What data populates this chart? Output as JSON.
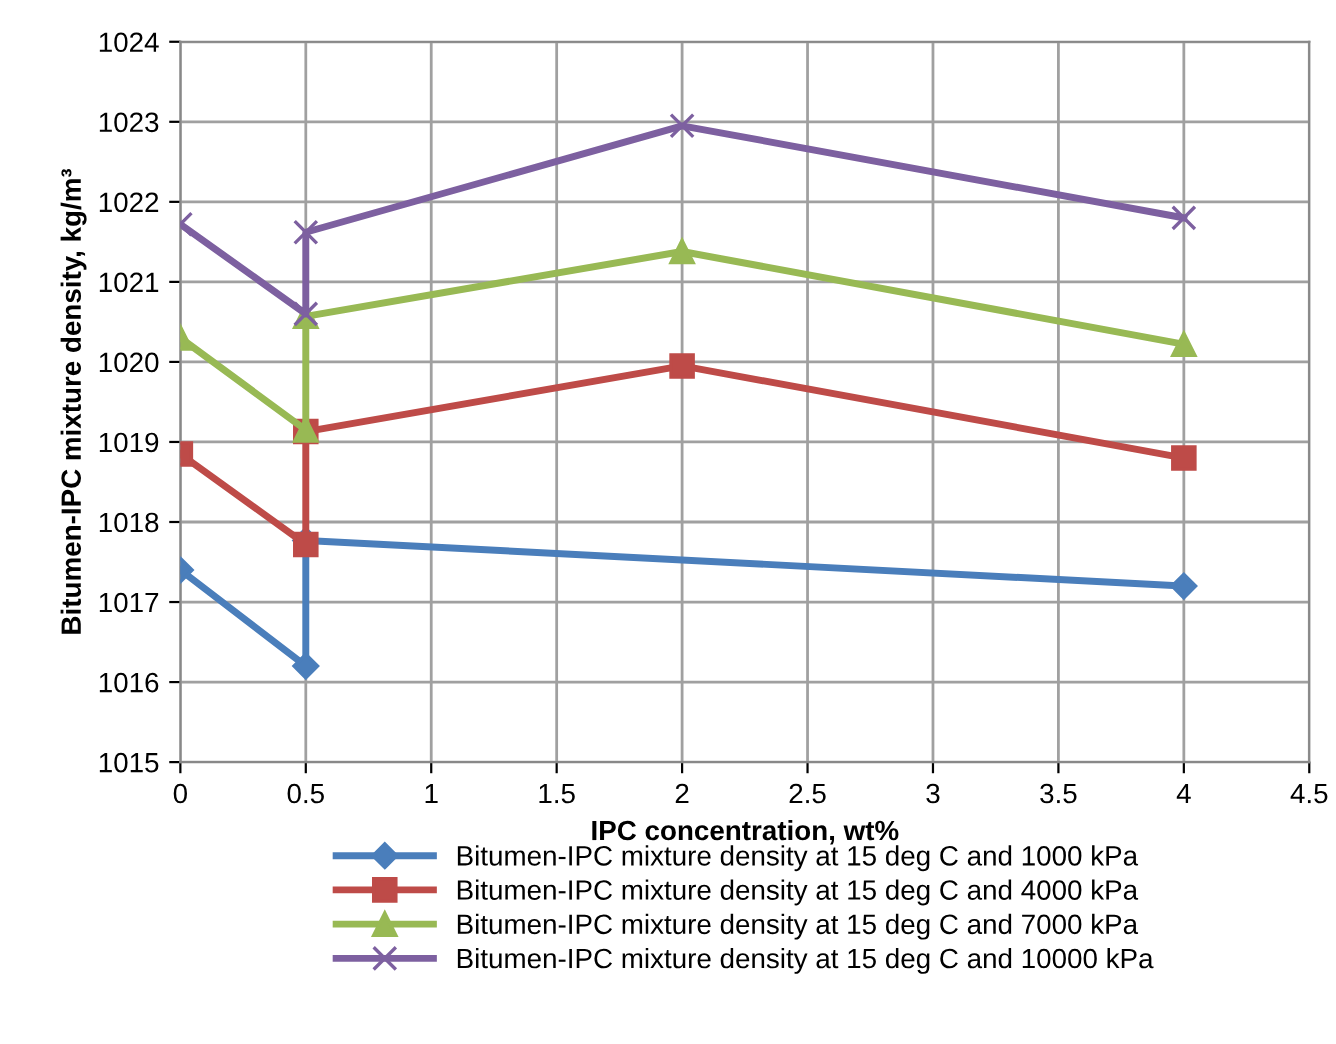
{
  "chart_data": {
    "type": "line",
    "xlabel": "IPC concentration, wt%",
    "ylabel": "Bitumen-IPC mixture density, kg/m³",
    "xlim": [
      0,
      4.5
    ],
    "xticks": [
      0,
      0.5,
      1,
      1.5,
      2,
      2.5,
      3,
      3.5,
      4,
      4.5
    ],
    "ylim": [
      1015,
      1024
    ],
    "yticks": [
      1015,
      1016,
      1017,
      1018,
      1019,
      1020,
      1021,
      1022,
      1023,
      1024
    ],
    "grid": true,
    "legend": "bottom",
    "series": [
      {
        "name": "Bitumen-IPC mixture density at 15 deg C and 1000 kPa",
        "color": "#4a7ebb",
        "marker": "diamond",
        "x": [
          0,
          0.5,
          0.5,
          4
        ],
        "values": [
          1017.4,
          1016.2,
          1017.77,
          1017.2
        ]
      },
      {
        "name": "Bitumen-IPC mixture density at 15 deg C and 4000 kPa",
        "color": "#be4b48",
        "marker": "square",
        "x": [
          0,
          0.5,
          0.5,
          2,
          4
        ],
        "values": [
          1018.85,
          1017.72,
          1019.13,
          1019.95,
          1018.8
        ]
      },
      {
        "name": "Bitumen-IPC mixture density at 15 deg C and 7000 kPa",
        "color": "#98b954",
        "marker": "triangle",
        "x": [
          0,
          0.5,
          0.5,
          2,
          4
        ],
        "values": [
          1020.3,
          1019.15,
          1020.57,
          1021.38,
          1020.22
        ]
      },
      {
        "name": "Bitumen-IPC mixture density at 15 deg C and 10000 kPa",
        "color": "#7d60a0",
        "marker": "cross",
        "x": [
          0,
          0.5,
          0.5,
          2,
          4
        ],
        "values": [
          1021.72,
          1020.6,
          1021.62,
          1022.95,
          1021.8
        ]
      }
    ]
  }
}
